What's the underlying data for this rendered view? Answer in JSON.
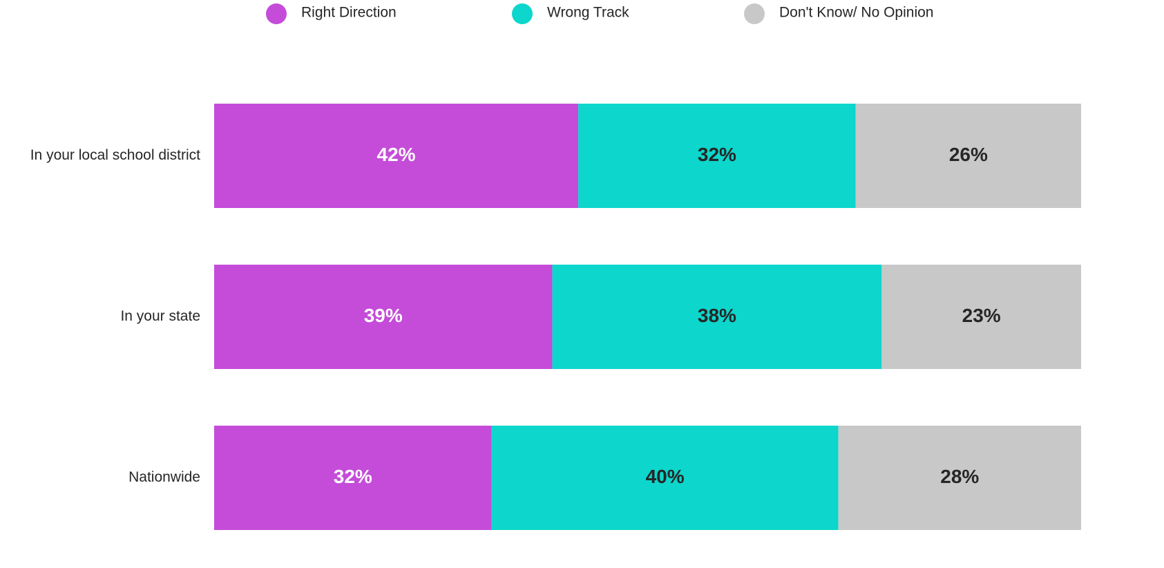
{
  "chart_data": {
    "type": "stacked_bar_horizontal",
    "categories": [
      "In your local school district",
      "In your state",
      "Nationwide"
    ],
    "series": [
      {
        "name": "Right Direction",
        "color": "#c44cd9",
        "label_color": "#ffffff",
        "values": [
          42,
          39,
          32
        ],
        "value_labels": [
          "42%",
          "39%",
          "32%"
        ]
      },
      {
        "name": "Wrong Track",
        "color": "#0dd6cc",
        "label_color": "#262626",
        "values": [
          32,
          38,
          40
        ],
        "value_labels": [
          "32%",
          "38%",
          "40%"
        ]
      },
      {
        "name": "Don't Know/ No Opinion",
        "color": "#c8c8c8",
        "label_color": "#262626",
        "values": [
          26,
          23,
          28
        ],
        "value_labels": [
          "26%",
          "23%",
          "28%"
        ]
      }
    ],
    "xlim": [
      0,
      100
    ],
    "legend": "top"
  }
}
